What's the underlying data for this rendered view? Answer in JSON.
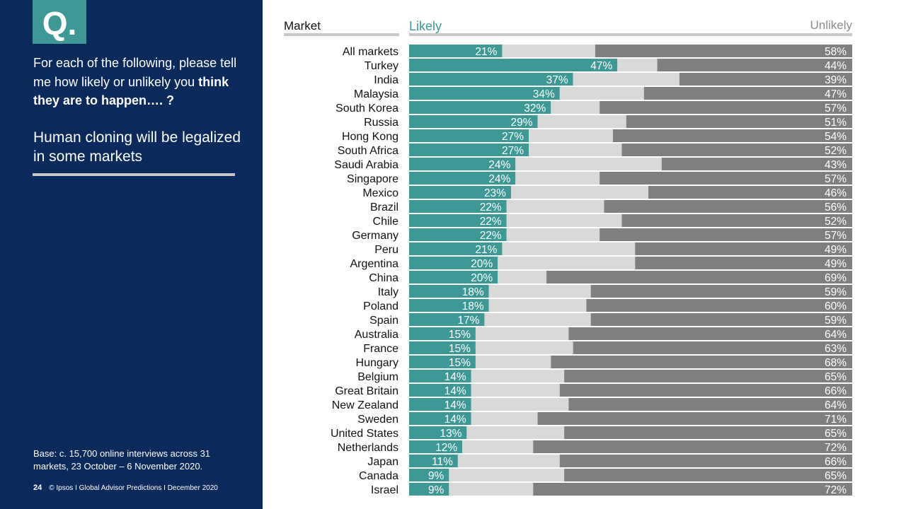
{
  "sidebar": {
    "badge": "Q.",
    "question_part1": "For each of the following, please tell me how likely or unlikely you ",
    "question_bold": "think they are to happen…. ?",
    "subject": "Human cloning will be legalized in some markets",
    "base_note": "Base: c. 15,700 online interviews across 31 markets,  23 October – 6 November 2020.",
    "page_number": "24",
    "footer_text": "© Ipsos I Global Advisor Predictions I December 2020"
  },
  "colors": {
    "sidebar_bg": "#0b2a5c",
    "likely": "#3e9896",
    "neutral": "#d9d9d9",
    "unlikely": "#7f7f7f"
  },
  "chart_data": {
    "type": "bar",
    "orientation": "horizontal-stacked-100",
    "column_headers": {
      "category": "Market",
      "likely": "Likely",
      "unlikely": "Unlikely"
    },
    "categories": [
      "All markets",
      "Turkey",
      "India",
      "Malaysia",
      "South Korea",
      "Russia",
      "Hong Kong",
      "South Africa",
      "Saudi Arabia",
      "Singapore",
      "Mexico",
      "Brazil",
      "Chile",
      "Germany",
      "Peru",
      "Argentina",
      "China",
      "Italy",
      "Poland",
      "Spain",
      "Australia",
      "France",
      "Hungary",
      "Belgium",
      "Great Britain",
      "New Zealand",
      "Sweden",
      "United States",
      "Netherlands",
      "Japan",
      "Canada",
      "Israel"
    ],
    "series": [
      {
        "name": "Likely",
        "values": [
          21,
          47,
          37,
          34,
          32,
          29,
          27,
          27,
          24,
          24,
          23,
          22,
          22,
          22,
          21,
          20,
          20,
          18,
          18,
          17,
          15,
          15,
          15,
          14,
          14,
          14,
          14,
          13,
          12,
          11,
          9,
          9
        ]
      },
      {
        "values": [
          21,
          9,
          24,
          19,
          11,
          20,
          19,
          21,
          33,
          19,
          31,
          22,
          26,
          21,
          30,
          31,
          11,
          23,
          22,
          24,
          21,
          22,
          17,
          21,
          20,
          22,
          15,
          22,
          16,
          23,
          26,
          19
        ]
      },
      {
        "name": "Unlikely",
        "values": [
          58,
          44,
          39,
          47,
          57,
          51,
          54,
          52,
          43,
          57,
          46,
          56,
          52,
          57,
          49,
          49,
          69,
          59,
          60,
          59,
          64,
          63,
          68,
          65,
          66,
          64,
          71,
          65,
          72,
          66,
          65,
          72
        ]
      }
    ],
    "value_suffix": "%",
    "xlim": [
      0,
      100
    ]
  }
}
